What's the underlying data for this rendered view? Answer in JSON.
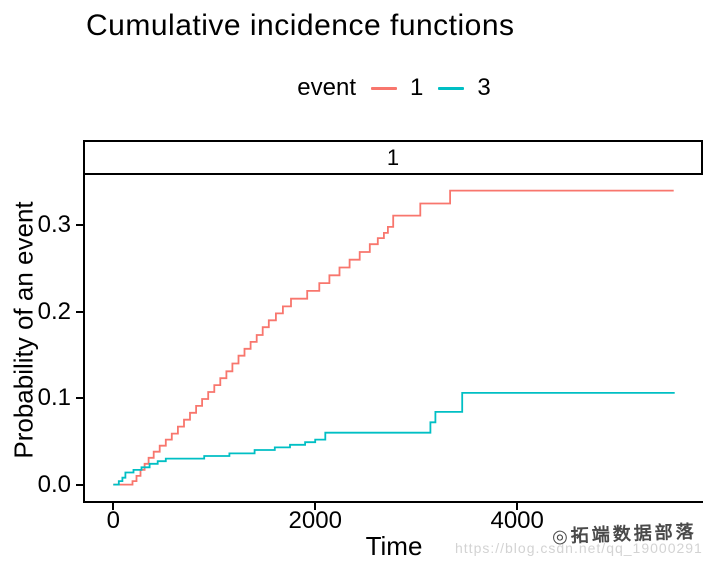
{
  "title": "Cumulative incidence functions",
  "legend": {
    "title": "event",
    "items": [
      {
        "label": "1",
        "color": "#F8766D"
      },
      {
        "label": "3",
        "color": "#00BFC4"
      }
    ]
  },
  "facet": {
    "label": "1"
  },
  "axes": {
    "x": {
      "label": "Time",
      "tick_labels": [
        "0",
        "2000",
        "4000"
      ]
    },
    "y": {
      "label": "Probability of an event",
      "tick_labels": [
        "0.0",
        "0.1",
        "0.2",
        "0.3"
      ]
    }
  },
  "watermark": {
    "brand": "◎拓端数据部落",
    "url": "https://blog.csdn.net/qq_19000291"
  },
  "chart_data": {
    "type": "line",
    "subtype": "step",
    "title": "Cumulative incidence functions",
    "xlabel": "Time",
    "ylabel": "Probability of an event",
    "facet_label": "1",
    "legend_title": "event",
    "legend_position": "top",
    "grid": false,
    "xlim": [
      -280,
      5840
    ],
    "ylim": [
      -0.019,
      0.358
    ],
    "x_ticks": [
      0,
      2000,
      4000
    ],
    "y_ticks": [
      0,
      0.1,
      0.2,
      0.3
    ],
    "series": [
      {
        "name": "1",
        "color": "#F8766D",
        "points": [
          [
            0,
            0
          ],
          [
            190,
            0.004
          ],
          [
            230,
            0.01
          ],
          [
            270,
            0.017
          ],
          [
            310,
            0.024
          ],
          [
            350,
            0.031
          ],
          [
            400,
            0.038
          ],
          [
            460,
            0.045
          ],
          [
            520,
            0.052
          ],
          [
            580,
            0.059
          ],
          [
            640,
            0.067
          ],
          [
            700,
            0.075
          ],
          [
            760,
            0.083
          ],
          [
            820,
            0.091
          ],
          [
            880,
            0.099
          ],
          [
            940,
            0.107
          ],
          [
            1000,
            0.115
          ],
          [
            1060,
            0.123
          ],
          [
            1120,
            0.131
          ],
          [
            1180,
            0.14
          ],
          [
            1240,
            0.149
          ],
          [
            1300,
            0.157
          ],
          [
            1360,
            0.165
          ],
          [
            1420,
            0.173
          ],
          [
            1480,
            0.182
          ],
          [
            1540,
            0.19
          ],
          [
            1610,
            0.198
          ],
          [
            1680,
            0.206
          ],
          [
            1760,
            0.215
          ],
          [
            1920,
            0.224
          ],
          [
            2040,
            0.233
          ],
          [
            2140,
            0.242
          ],
          [
            2240,
            0.251
          ],
          [
            2340,
            0.26
          ],
          [
            2440,
            0.269
          ],
          [
            2540,
            0.278
          ],
          [
            2620,
            0.285
          ],
          [
            2680,
            0.291
          ],
          [
            2720,
            0.298
          ],
          [
            2772,
            0.311
          ],
          [
            3040,
            0.325
          ],
          [
            3336,
            0.34
          ],
          [
            5550,
            0.34
          ]
        ]
      },
      {
        "name": "3",
        "color": "#00BFC4",
        "points": [
          [
            0,
            0
          ],
          [
            55,
            0.004
          ],
          [
            90,
            0.008
          ],
          [
            120,
            0.014
          ],
          [
            200,
            0.017
          ],
          [
            280,
            0.02
          ],
          [
            360,
            0.024
          ],
          [
            440,
            0.027
          ],
          [
            520,
            0.03
          ],
          [
            900,
            0.033
          ],
          [
            1150,
            0.036
          ],
          [
            1400,
            0.04
          ],
          [
            1600,
            0.043
          ],
          [
            1750,
            0.046
          ],
          [
            1900,
            0.049
          ],
          [
            2000,
            0.052
          ],
          [
            2100,
            0.06
          ],
          [
            3140,
            0.072
          ],
          [
            3190,
            0.084
          ],
          [
            3455,
            0.106
          ],
          [
            5560,
            0.106
          ]
        ]
      }
    ]
  }
}
